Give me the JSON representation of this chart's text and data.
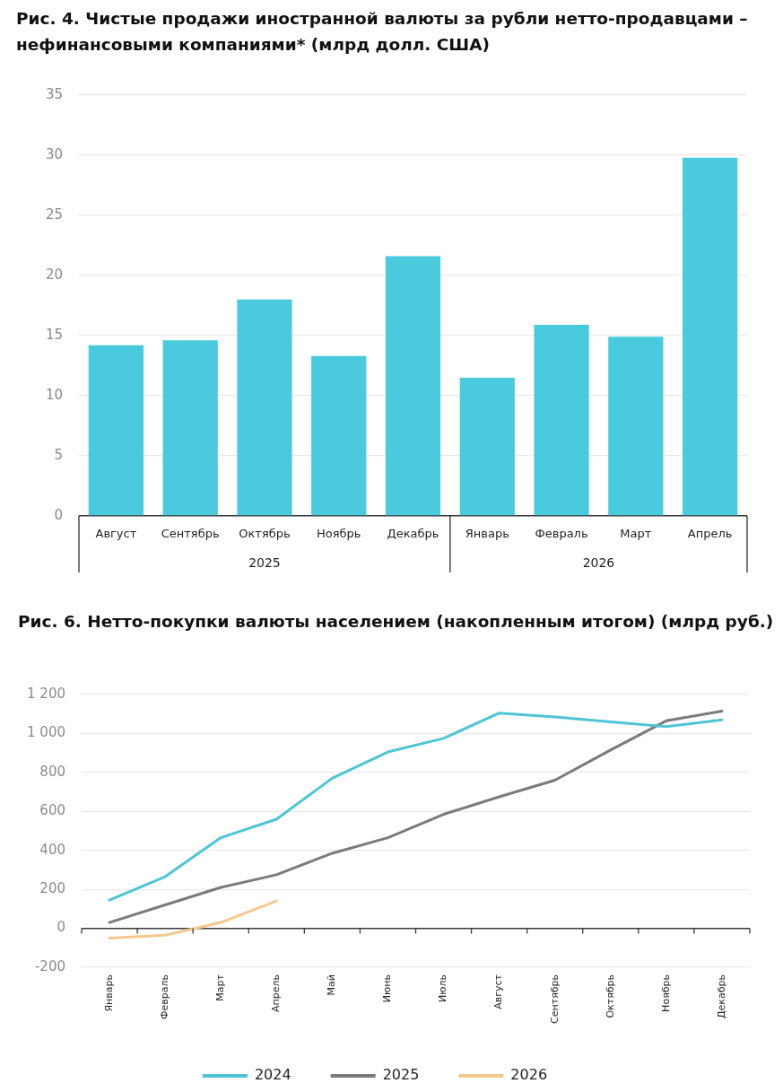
{
  "chart_data": [
    {
      "type": "bar",
      "title": "Рис. 4. Чистые продажи иностранной валюты за рубли нетто-продавцами – нефинансовыми компаниями* (млрд долл. США)",
      "categories": [
        "Август",
        "Сентябрь",
        "Октябрь",
        "Ноябрь",
        "Декабрь",
        "Январь",
        "Февраль",
        "Март",
        "Апрель"
      ],
      "values": [
        14.2,
        14.6,
        18.0,
        13.3,
        21.6,
        11.5,
        15.9,
        14.9,
        29.8
      ],
      "color": "#4acbdd",
      "ylim": [
        0,
        35
      ],
      "yticks": [
        0,
        5,
        10,
        15,
        20,
        25,
        30,
        35
      ],
      "grid": "y",
      "annotations": [
        "2025",
        "2026"
      ]
    },
    {
      "type": "line",
      "title": "Рис. 6. Нетто-покупки валюты населением (накопленным итогом) (млрд руб.)",
      "categories": [
        "Январь",
        "Февраль",
        "Март",
        "Апрель",
        "Май",
        "Июнь",
        "Июль",
        "Август",
        "Сентябрь",
        "Октябрь",
        "Ноябрь",
        "Декабрь"
      ],
      "series": [
        {
          "name": "2024",
          "color": "#4dc5d6",
          "values": [
            145,
            265,
            465,
            560,
            770,
            905,
            975,
            1105,
            1085,
            1060,
            1035,
            1070
          ]
        },
        {
          "name": "2025",
          "color": "#7b7b7b",
          "values": [
            30,
            120,
            210,
            275,
            385,
            465,
            585,
            675,
            760,
            915,
            1065,
            1115
          ]
        },
        {
          "name": "2026",
          "color": "#f5c88e",
          "values": [
            -50,
            -35,
            30,
            140,
            null,
            null,
            null,
            null,
            null,
            null,
            null,
            null
          ]
        }
      ],
      "ylim": [
        -200,
        1200
      ],
      "yticks": [
        {
          "value": -200,
          "label": "-200"
        },
        0,
        200,
        400,
        600,
        800,
        {
          "value": 1000,
          "label": "1 000"
        },
        {
          "value": 1200,
          "label": "1 200"
        }
      ],
      "grid": "y",
      "legend": "bottom"
    }
  ]
}
